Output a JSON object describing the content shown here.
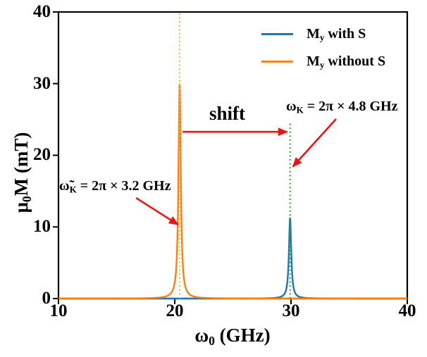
{
  "figure": {
    "xlabel": {
      "sym": "ω",
      "sub": "0",
      "rest": " (GHz)"
    },
    "ylabel": {
      "sym": "μ",
      "sub": "0",
      "rest": "M (mT)"
    },
    "xticks": [
      "10",
      "20",
      "30",
      "40"
    ],
    "yticks": [
      "40",
      "30",
      "20",
      "10",
      "0"
    ]
  },
  "legend": {
    "items": [
      {
        "main": "M",
        "sub": "y",
        "rest": " with S",
        "color": "#1f77b4"
      },
      {
        "main": "M",
        "sub": "y",
        "rest": " without S",
        "color": "#ff7f0e"
      }
    ]
  },
  "annotations": {
    "shift": "shift",
    "omega_k": {
      "sym": "ω",
      "sub": "K",
      "rest": " = 2π × 4.8 GHz"
    },
    "omega_k_tilde": {
      "sym": "ω̃",
      "sub": "K",
      "rest": " = 2π × 3.2 GHz"
    }
  },
  "chart_data": {
    "type": "line",
    "title": "",
    "xlabel": "ω0 (GHz)",
    "ylabel": "μ0M (mT)",
    "xlim": [
      10,
      40
    ],
    "ylim": [
      0,
      40
    ],
    "xticks": [
      10,
      20,
      30,
      40
    ],
    "yticks": [
      0,
      10,
      20,
      30,
      40
    ],
    "grid": false,
    "legend_position": "upper right",
    "legend_labels": [
      "My with S",
      "My without S"
    ],
    "series": [
      {
        "name": "My with S",
        "color": "#1f77b4",
        "shape": "lorentzian",
        "peak_x_ghz": 29.92,
        "amplitude_mt": 11.2,
        "gamma_ghz": 0.12
      },
      {
        "name": "My without S",
        "color": "#ff7f0e",
        "shape": "lorentzian",
        "peak_x_ghz": 20.42,
        "amplitude_mt": 29.9,
        "gamma_ghz": 0.12
      }
    ],
    "vlines": [
      {
        "x_ghz": 20.42,
        "y_from_mt": 0,
        "y_to_mt": 40,
        "color": "#ffaf45",
        "style": "dotted"
      },
      {
        "x_ghz": 29.92,
        "y_from_mt": 0,
        "y_to_mt": 24.7,
        "color": "#1ea42c",
        "style": "dotted"
      }
    ],
    "arrows": [
      {
        "name": "shift-arrow",
        "from": [
          20.67,
          23.27
        ],
        "to": [
          29.68,
          23.27
        ],
        "color": "#f21111"
      },
      {
        "name": "omega-k-arrow",
        "from": [
          33.88,
          25.06
        ],
        "to": [
          30.15,
          18.4
        ],
        "color": "#f21111"
      },
      {
        "name": "omega-k-tilde-arrow",
        "from": [
          16.67,
          14.05
        ],
        "to": [
          20.3,
          10.3
        ],
        "color": "#f21111"
      }
    ]
  }
}
